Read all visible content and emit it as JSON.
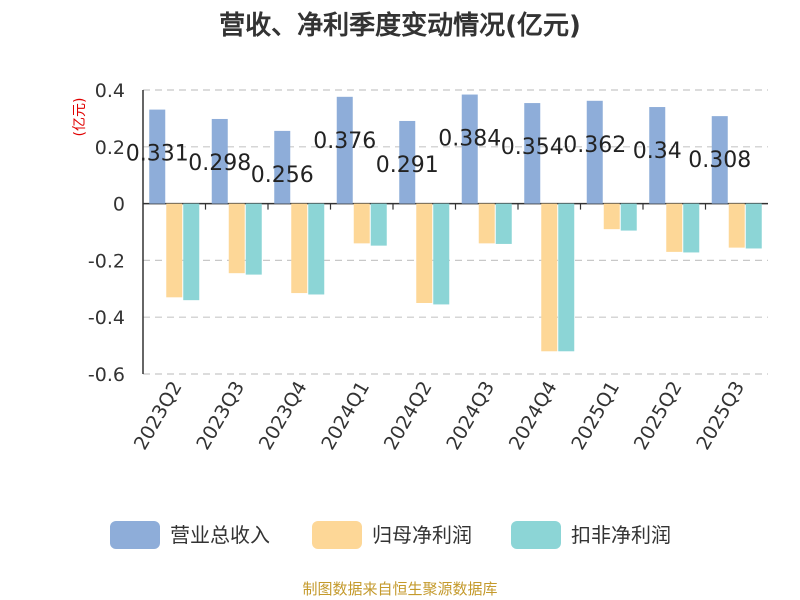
{
  "chart_data": {
    "type": "bar",
    "title": "营收、净利季度变动情况(亿元)",
    "unit_label": "(亿元)",
    "categories": [
      "2023Q2",
      "2023Q3",
      "2023Q4",
      "2024Q1",
      "2024Q2",
      "2024Q3",
      "2024Q4",
      "2025Q1",
      "2025Q2",
      "2025Q3"
    ],
    "series": [
      {
        "name": "营业总收入",
        "color": "#8eadd9",
        "values": [
          0.331,
          0.298,
          0.256,
          0.376,
          0.291,
          0.384,
          0.354,
          0.362,
          0.34,
          0.308
        ],
        "labels": [
          "0.331",
          "0.298",
          "0.256",
          "0.376",
          "0.291",
          "0.384",
          "0.354",
          "0.362",
          "0.34",
          "0.308"
        ]
      },
      {
        "name": "归母净利润",
        "color": "#fdd797",
        "values": [
          -0.33,
          -0.245,
          -0.315,
          -0.14,
          -0.35,
          -0.14,
          -0.52,
          -0.09,
          -0.17,
          -0.155
        ]
      },
      {
        "name": "扣非净利润",
        "color": "#8cd5d6",
        "values": [
          -0.34,
          -0.25,
          -0.32,
          -0.148,
          -0.355,
          -0.142,
          -0.52,
          -0.095,
          -0.172,
          -0.158
        ]
      }
    ],
    "ylim": [
      -0.6,
      0.4
    ],
    "yticks": [
      "0.4",
      "0.2",
      "0",
      "-0.2",
      "-0.4",
      "-0.6"
    ],
    "ytick_values": [
      0.4,
      0.2,
      0,
      -0.2,
      -0.4,
      -0.6
    ],
    "grid": true,
    "legend_position": "bottom"
  },
  "source": "制图数据来自恒生聚源数据库"
}
